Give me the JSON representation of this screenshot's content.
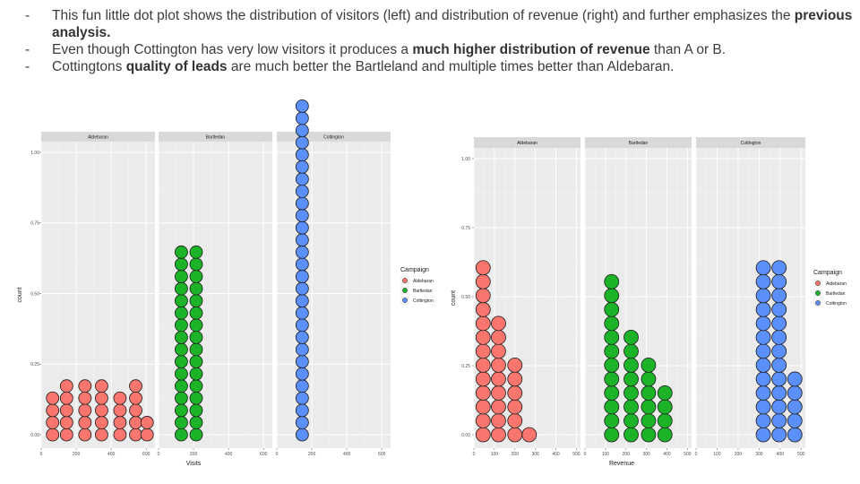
{
  "bullets": [
    {
      "dash": "-",
      "parts": [
        {
          "t": "This fun little dot plot shows the distribution of visitors (left) and distribution of revenue (right) and further  emphasizes the "
        },
        {
          "t": "previous analysis.",
          "b": true
        }
      ]
    },
    {
      "dash": "-",
      "parts": [
        {
          "t": "Even though Cottington has very low visitors it produces a "
        },
        {
          "t": "much higher distribution of revenue",
          "b": true
        },
        {
          "t": " than A or B."
        }
      ]
    },
    {
      "dash": "-",
      "parts": [
        {
          "t": "Cottingtons "
        },
        {
          "t": "quality of leads",
          "b": true
        },
        {
          "t": " are much better the Bartleland and multiple times better than Aldebaran."
        }
      ]
    }
  ],
  "colors": {
    "Aldebaran": "#f8766d",
    "Bartledan": "#1db329",
    "Cottington": "#5b8ff9"
  },
  "chart_data": [
    {
      "type": "dotplot",
      "xlabel": "Visits",
      "ylabel": "count",
      "facets": [
        "Aldebaran",
        "Bartledan",
        "Cottington"
      ],
      "xlim": [
        0,
        650
      ],
      "xticks": [
        0,
        200,
        400,
        600
      ],
      "ylim": [
        0,
        1.05
      ],
      "yticks": [
        0.0,
        0.25,
        0.5,
        0.75,
        1.0
      ],
      "ytick_labels": [
        "0.00",
        "0.25",
        "0.50",
        "0.75",
        "1.00"
      ],
      "legend": {
        "title": "Campaign",
        "entries": [
          "Aldebaran",
          "Bartledan",
          "Cottington"
        ],
        "position": "right"
      },
      "panels": [
        {
          "facet": "Aldebaran",
          "stacks": [
            {
              "x": 65,
              "n": 4
            },
            {
              "x": 145,
              "n": 5
            },
            {
              "x": 250,
              "n": 5
            },
            {
              "x": 345,
              "n": 5
            },
            {
              "x": 450,
              "n": 4
            },
            {
              "x": 540,
              "n": 5
            },
            {
              "x": 605,
              "n": 2
            }
          ]
        },
        {
          "facet": "Bartledan",
          "stacks": [
            {
              "x": 130,
              "n": 16
            },
            {
              "x": 215,
              "n": 16
            }
          ]
        },
        {
          "facet": "Cottington",
          "stacks": [
            {
              "x": 145,
              "n": 28
            }
          ]
        }
      ]
    },
    {
      "type": "dotplot",
      "xlabel": "Revenue",
      "ylabel": "count",
      "facets": [
        "Aldebaran",
        "Bartledan",
        "Cottington"
      ],
      "xlim": [
        0,
        520
      ],
      "xticks": [
        0,
        100,
        200,
        300,
        400,
        500
      ],
      "ylim": [
        0,
        1.05
      ],
      "yticks": [
        0.0,
        0.25,
        0.5,
        0.75,
        1.0
      ],
      "ytick_labels": [
        "0.00",
        "0.25",
        "0.50",
        "0.75",
        "1.00"
      ],
      "legend": {
        "title": "Campaign",
        "entries": [
          "Aldebaran",
          "Bartledan",
          "Cottington"
        ],
        "position": "right"
      },
      "panels": [
        {
          "facet": "Aldebaran",
          "stacks": [
            {
              "x": 45,
              "n": 13
            },
            {
              "x": 120,
              "n": 9
            },
            {
              "x": 200,
              "n": 6
            },
            {
              "x": 270,
              "n": 1
            }
          ]
        },
        {
          "facet": "Bartledan",
          "stacks": [
            {
              "x": 130,
              "n": 12
            },
            {
              "x": 225,
              "n": 8
            },
            {
              "x": 310,
              "n": 6
            },
            {
              "x": 390,
              "n": 4
            }
          ]
        },
        {
          "facet": "Cottington",
          "stacks": [
            {
              "x": 320,
              "n": 13
            },
            {
              "x": 395,
              "n": 13
            },
            {
              "x": 470,
              "n": 5
            }
          ]
        }
      ]
    }
  ]
}
